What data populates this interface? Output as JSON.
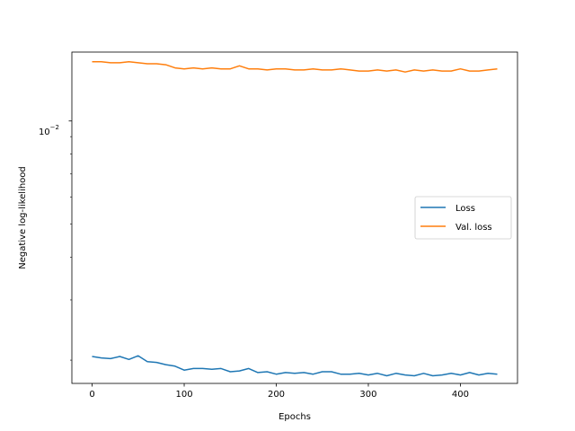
{
  "chart_data": {
    "type": "line",
    "title": "",
    "xlabel": "Epochs",
    "ylabel": "Negative log-likelihood",
    "y_scale": "log",
    "xlim": [
      -22,
      462
    ],
    "ylim": [
      0.00171,
      0.0159
    ],
    "x_ticks": [
      0,
      100,
      200,
      300,
      400
    ],
    "x_tick_labels": [
      "0",
      "100",
      "200",
      "300",
      "400"
    ],
    "y_major_ticks": [
      0.01
    ],
    "y_tick_base": "10",
    "y_tick_exponent": "−2",
    "y_minor_ticks": [
      0.002,
      0.003,
      0.004,
      0.005,
      0.006,
      0.007,
      0.008,
      0.009
    ],
    "grid": false,
    "legend_position": "center-right",
    "series": [
      {
        "name": "Loss",
        "color": "#1f77b4",
        "x": [
          0,
          10,
          20,
          30,
          40,
          50,
          60,
          70,
          80,
          90,
          100,
          110,
          120,
          130,
          140,
          150,
          160,
          170,
          180,
          190,
          200,
          210,
          220,
          230,
          240,
          250,
          260,
          270,
          280,
          290,
          300,
          310,
          320,
          330,
          340,
          350,
          360,
          370,
          380,
          390,
          400,
          410,
          420,
          430,
          440
        ],
        "values": [
          0.00205,
          0.00203,
          0.00202,
          0.00205,
          0.00201,
          0.00206,
          0.00198,
          0.00197,
          0.00194,
          0.00192,
          0.00187,
          0.00189,
          0.00189,
          0.00188,
          0.00189,
          0.00185,
          0.00186,
          0.00189,
          0.00184,
          0.00185,
          0.00182,
          0.00184,
          0.00183,
          0.00184,
          0.00182,
          0.00185,
          0.00185,
          0.00182,
          0.00182,
          0.00183,
          0.00181,
          0.00183,
          0.0018,
          0.00183,
          0.00181,
          0.0018,
          0.00183,
          0.0018,
          0.00181,
          0.00183,
          0.00181,
          0.00184,
          0.00181,
          0.00183,
          0.00182
        ]
      },
      {
        "name": "Val. loss",
        "color": "#ff7f0e",
        "x": [
          0,
          10,
          20,
          30,
          40,
          50,
          60,
          70,
          80,
          90,
          100,
          110,
          120,
          130,
          140,
          150,
          160,
          170,
          180,
          190,
          200,
          210,
          220,
          230,
          240,
          250,
          260,
          270,
          280,
          290,
          300,
          310,
          320,
          330,
          340,
          350,
          360,
          370,
          380,
          390,
          400,
          410,
          420,
          430,
          440
        ],
        "values": [
          0.0149,
          0.0149,
          0.0148,
          0.0148,
          0.0149,
          0.0148,
          0.0147,
          0.0147,
          0.0146,
          0.0143,
          0.0142,
          0.0143,
          0.0142,
          0.0143,
          0.0142,
          0.0142,
          0.0145,
          0.0142,
          0.0142,
          0.0141,
          0.0142,
          0.0142,
          0.0141,
          0.0141,
          0.0142,
          0.0141,
          0.0141,
          0.0142,
          0.0141,
          0.014,
          0.014,
          0.0141,
          0.014,
          0.0141,
          0.0139,
          0.0141,
          0.014,
          0.0141,
          0.014,
          0.014,
          0.0142,
          0.014,
          0.014,
          0.0141,
          0.0142
        ]
      }
    ]
  }
}
